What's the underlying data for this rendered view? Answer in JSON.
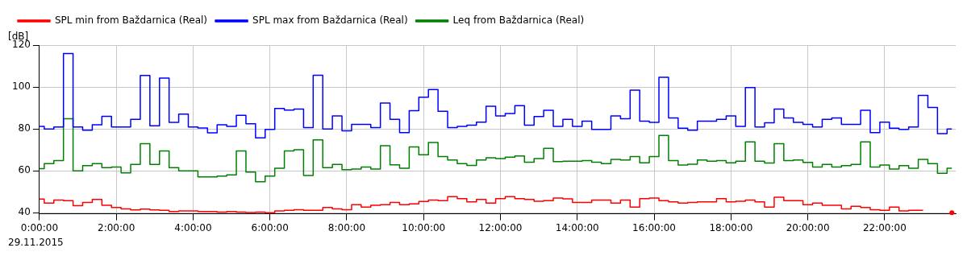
{
  "chart_data": {
    "type": "step",
    "ylabel": "[dB]",
    "annotations": [
      "29.11.2015"
    ],
    "x": [
      0,
      0.25,
      0.5,
      0.75,
      1,
      1.25,
      1.5,
      1.75,
      2,
      2.25,
      2.5,
      2.75,
      3,
      3.25,
      3.5,
      3.75,
      4,
      4.25,
      4.5,
      4.75,
      5,
      5.25,
      5.5,
      5.75,
      6,
      6.25,
      6.5,
      6.75,
      7,
      7.25,
      7.5,
      7.75,
      8,
      8.25,
      8.5,
      8.75,
      9,
      9.25,
      9.5,
      9.75,
      10,
      10.25,
      10.5,
      10.75,
      11,
      11.25,
      11.5,
      11.75,
      12,
      12.25,
      12.5,
      12.75,
      13,
      13.25,
      13.5,
      13.75,
      14,
      14.25,
      14.5,
      14.75,
      15,
      15.25,
      15.5,
      15.75,
      16,
      16.25,
      16.5,
      16.75,
      17,
      17.25,
      17.5,
      17.75,
      18,
      18.25,
      18.5,
      18.75,
      19,
      19.25,
      19.5,
      19.75,
      20,
      20.25,
      20.5,
      20.75,
      21,
      21.25,
      21.5,
      21.75,
      22,
      22.25,
      22.5,
      22.75,
      23,
      23.25,
      23.5,
      23.75
    ],
    "series": [
      {
        "name": "SPL min from Baždarnica (Real)",
        "color": "#ff0000",
        "values": [
          46.5,
          44.6,
          46.1,
          45.8,
          43.4,
          44.9,
          46.4,
          43.6,
          42.5,
          41.8,
          41.4,
          41.7,
          41.4,
          41.2,
          40.6,
          40.9,
          40.9,
          40.6,
          40.6,
          40.3,
          40.6,
          40.3,
          40.1,
          40.3,
          40,
          40.9,
          41.2,
          41.5,
          41.2,
          41.2,
          42.5,
          41.8,
          41.5,
          43.9,
          42.7,
          43.6,
          43.9,
          44.9,
          43.9,
          44.2,
          45.4,
          46.1,
          45.8,
          47.7,
          46.7,
          45.2,
          46.4,
          44.6,
          46.7,
          47.7,
          46.7,
          46.4,
          45.5,
          45.8,
          47,
          46.6,
          44.9,
          44.9,
          46.1,
          46.1,
          44.6,
          46.1,
          42.7,
          46.7,
          47,
          45.8,
          45.2,
          44.6,
          44.9,
          45.2,
          45.2,
          46.7,
          45.2,
          45.5,
          46.1,
          45.2,
          42.7,
          47.4,
          45.8,
          45.8,
          43.9,
          44.6,
          43.6,
          43.6,
          41.8,
          43.1,
          42.5,
          41.5,
          41.2,
          42.7,
          40.9,
          41.2,
          41.2,
          null,
          null,
          40
        ]
      },
      {
        "name": "SPL max from Baždarnica (Real)",
        "color": "#0000ff",
        "values": [
          81.2,
          80,
          80.9,
          116,
          80.9,
          79.4,
          82,
          86,
          80.9,
          80.9,
          84.6,
          105.5,
          81.5,
          104.3,
          83.1,
          87.1,
          80.9,
          80.4,
          78.1,
          82,
          81.2,
          86.5,
          82.5,
          75.7,
          79.8,
          89.8,
          89,
          89.5,
          80.6,
          105.6,
          80,
          86.2,
          79.1,
          82.2,
          82.2,
          80.6,
          92.3,
          84.6,
          78.2,
          88.7,
          95.1,
          98.8,
          88.4,
          80.6,
          81.2,
          81.8,
          83.2,
          90.8,
          86.2,
          87.4,
          91.1,
          81.8,
          85.9,
          88.9,
          81.2,
          84.6,
          81.2,
          83.7,
          79.8,
          79.8,
          86.2,
          84.9,
          98.5,
          83.7,
          83.1,
          104.6,
          85.2,
          80.3,
          79.4,
          83.7,
          83.7,
          84.6,
          86.2,
          81.2,
          99.7,
          80.9,
          82.9,
          89.5,
          85.2,
          83.1,
          82.2,
          80.9,
          84.6,
          85.2,
          82.2,
          82.2,
          88.9,
          78.2,
          83.2,
          80.3,
          79.8,
          80.9,
          96,
          90.2,
          77.8,
          80
        ]
      },
      {
        "name": "Leq from Baždarnica (Real)",
        "color": "#008000",
        "values": [
          61,
          63.4,
          64.9,
          84.9,
          60,
          62.5,
          63.4,
          61.5,
          61.8,
          59,
          63.1,
          73,
          63.1,
          69.5,
          61.5,
          60,
          60,
          57.1,
          57.1,
          57.5,
          58.1,
          69.5,
          59.4,
          54.8,
          57.5,
          61.2,
          69.5,
          70.1,
          57.8,
          74.8,
          61.5,
          63.1,
          60.6,
          60.9,
          61.8,
          60.9,
          72,
          62.9,
          61.2,
          71.4,
          67.7,
          73.5,
          66.8,
          65.2,
          63.4,
          62.6,
          65.2,
          66.2,
          65.8,
          66.5,
          67.1,
          64.1,
          65.8,
          70.7,
          64.4,
          64.6,
          64.6,
          64.9,
          64.1,
          63.4,
          65.5,
          65.2,
          66.8,
          63.8,
          66.8,
          76.9,
          64.9,
          62.8,
          63.2,
          65.2,
          64.6,
          64.9,
          63.8,
          64.6,
          73.8,
          64.6,
          63.7,
          73,
          64.9,
          65.2,
          64,
          61.8,
          63.1,
          61.8,
          62.5,
          63.1,
          73.8,
          61.8,
          62.8,
          60.9,
          62.5,
          61.2,
          65.5,
          63.4,
          58.8,
          61.2
        ]
      }
    ],
    "xlim": [
      0,
      23.85
    ],
    "xticks": [
      {
        "value": 0,
        "label": "0:00:00"
      },
      {
        "value": 2,
        "label": "2:00:00"
      },
      {
        "value": 4,
        "label": "4:00:00"
      },
      {
        "value": 6,
        "label": "6:00:00"
      },
      {
        "value": 8,
        "label": "8:00:00"
      },
      {
        "value": 10,
        "label": "10:00:00"
      },
      {
        "value": 12,
        "label": "12:00:00"
      },
      {
        "value": 14,
        "label": "14:00:00"
      },
      {
        "value": 16,
        "label": "16:00:00"
      },
      {
        "value": 18,
        "label": "18:00:00"
      },
      {
        "value": 20,
        "label": "20:00:00"
      },
      {
        "value": 22,
        "label": "22:00:00"
      }
    ],
    "ylim": [
      39.5,
      120
    ],
    "yticks": [
      40,
      60,
      80,
      100,
      120
    ],
    "grid": true,
    "legend": "top left"
  }
}
